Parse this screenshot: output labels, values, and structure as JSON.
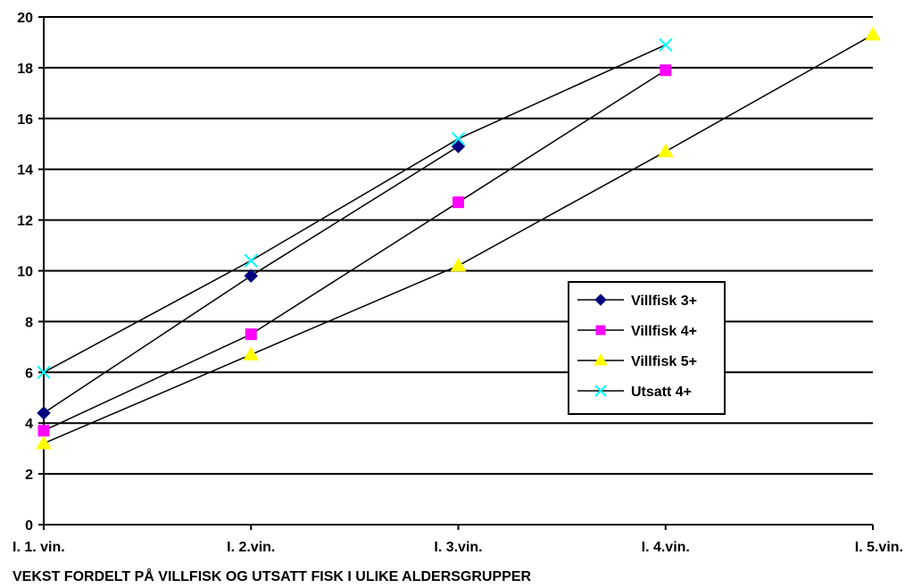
{
  "chart_data": {
    "type": "line",
    "title": "",
    "xlabel": "VEKST FORDELT PÅ VILLFISK OG UTSATT FISK I ULIKE ALDERSGRUPPER",
    "ylabel": "",
    "categories": [
      "I. 1. vin.",
      "I. 2.vin.",
      "I. 3.vin.",
      "I. 4.vin.",
      "I. 5.vin."
    ],
    "ylim": [
      0,
      20
    ],
    "yticks": [
      "0",
      "2",
      "4",
      "6",
      "8",
      "10",
      "12",
      "14",
      "16",
      "18",
      "20"
    ],
    "grid": true,
    "legend_position": "right",
    "series": [
      {
        "name": "Villfisk 3+",
        "values": [
          4.4,
          9.8,
          14.9,
          null,
          null
        ],
        "color": "#000080",
        "marker": "diamond"
      },
      {
        "name": "Villfisk 4+",
        "values": [
          3.7,
          7.5,
          12.7,
          17.9,
          null
        ],
        "color": "#FF00FF",
        "marker": "square"
      },
      {
        "name": "Villfisk 5+",
        "values": [
          3.2,
          6.7,
          10.2,
          14.7,
          19.3
        ],
        "color": "#FFFF00",
        "marker": "triangle"
      },
      {
        "name": "Utsatt 4+",
        "values": [
          6.0,
          10.4,
          15.2,
          18.9,
          null
        ],
        "color": "#00FFFF",
        "marker": "x"
      }
    ]
  }
}
